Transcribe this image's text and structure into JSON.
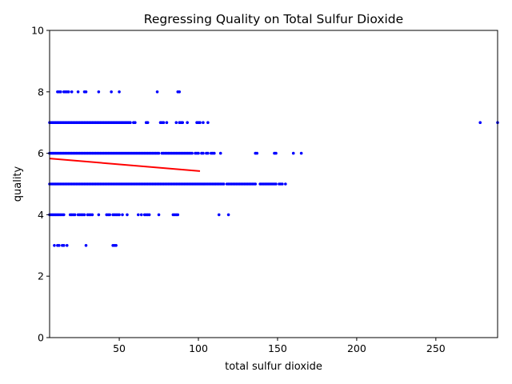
{
  "chart_data": {
    "type": "scatter",
    "title": "Regressing Quality on Total Sulfur Dioxide",
    "xlabel": "total sulfur dioxide",
    "ylabel": "quality",
    "xlim": [
      6,
      289
    ],
    "ylim": [
      0,
      10
    ],
    "xticks": [
      50,
      100,
      150,
      200,
      250
    ],
    "yticks": [
      0,
      2,
      4,
      6,
      8,
      10
    ],
    "grid": false,
    "legend": "none",
    "point_color": "#0000ff",
    "line_color": "#ff0000",
    "series": [
      {
        "kind": "scatter",
        "points": [
          {
            "y": 3,
            "x": [
              9,
              11,
              12,
              14,
              15,
              17,
              29,
              46,
              47,
              48
            ]
          },
          {
            "y": 4,
            "x": [
              6,
              7,
              8,
              9,
              10,
              11,
              12,
              13,
              14,
              15,
              19,
              20,
              21,
              22,
              24,
              25,
              26,
              27,
              28,
              30,
              31,
              32,
              33,
              37,
              42,
              43,
              44,
              46,
              47,
              48,
              49,
              50,
              52,
              55,
              62,
              64,
              66,
              67,
              68,
              69,
              75,
              84,
              85,
              86,
              87,
              113,
              119
            ]
          },
          {
            "y": 5,
            "x": [
              6,
              7,
              8,
              9,
              10,
              11,
              12,
              13,
              14,
              15,
              16,
              17,
              18,
              19,
              20,
              21,
              22,
              23,
              24,
              25,
              26,
              27,
              28,
              29,
              30,
              31,
              32,
              33,
              34,
              35,
              36,
              37,
              38,
              39,
              40,
              41,
              42,
              43,
              44,
              45,
              46,
              47,
              48,
              49,
              50,
              51,
              52,
              53,
              54,
              55,
              56,
              57,
              58,
              59,
              60,
              61,
              62,
              63,
              64,
              65,
              66,
              67,
              68,
              69,
              70,
              71,
              72,
              73,
              74,
              75,
              76,
              77,
              78,
              79,
              80,
              81,
              82,
              83,
              84,
              85,
              86,
              87,
              88,
              89,
              90,
              91,
              92,
              93,
              94,
              95,
              96,
              97,
              98,
              99,
              100,
              101,
              102,
              103,
              104,
              105,
              106,
              107,
              108,
              109,
              110,
              111,
              112,
              113,
              114,
              115,
              116,
              118,
              119,
              120,
              121,
              122,
              123,
              124,
              125,
              126,
              127,
              128,
              129,
              130,
              131,
              132,
              133,
              134,
              135,
              136,
              139,
              140,
              141,
              142,
              143,
              144,
              145,
              146,
              147,
              148,
              149,
              151,
              152,
              153,
              155
            ]
          },
          {
            "y": 6,
            "x": [
              6,
              7,
              8,
              9,
              10,
              11,
              12,
              13,
              14,
              15,
              16,
              17,
              18,
              19,
              20,
              21,
              22,
              23,
              24,
              25,
              26,
              27,
              28,
              29,
              30,
              31,
              32,
              33,
              34,
              35,
              36,
              37,
              38,
              39,
              40,
              41,
              42,
              43,
              44,
              45,
              46,
              47,
              48,
              49,
              50,
              51,
              52,
              53,
              54,
              55,
              56,
              57,
              58,
              59,
              60,
              61,
              62,
              63,
              64,
              65,
              66,
              67,
              68,
              69,
              70,
              71,
              72,
              73,
              74,
              75,
              77,
              78,
              79,
              80,
              81,
              82,
              83,
              84,
              85,
              86,
              87,
              88,
              89,
              90,
              91,
              92,
              93,
              94,
              95,
              96,
              98,
              99,
              100,
              102,
              103,
              105,
              106,
              108,
              109,
              110,
              114,
              136,
              137,
              148,
              149,
              160,
              165
            ]
          },
          {
            "y": 7,
            "x": [
              6,
              7,
              8,
              9,
              10,
              11,
              12,
              13,
              14,
              15,
              16,
              17,
              18,
              19,
              20,
              21,
              22,
              23,
              24,
              25,
              26,
              27,
              28,
              29,
              30,
              31,
              32,
              33,
              34,
              35,
              36,
              37,
              38,
              39,
              40,
              41,
              42,
              43,
              44,
              45,
              46,
              47,
              48,
              49,
              50,
              51,
              52,
              53,
              54,
              55,
              56,
              57,
              59,
              60,
              67,
              68,
              76,
              77,
              78,
              80,
              86,
              88,
              89,
              90,
              93,
              99,
              100,
              101,
              103,
              106,
              278,
              289
            ]
          },
          {
            "y": 8,
            "x": [
              11,
              12,
              13,
              15,
              16,
              17,
              18,
              20,
              24,
              28,
              29,
              37,
              45,
              50,
              74,
              87,
              88
            ]
          }
        ]
      },
      {
        "kind": "line",
        "x": [
          6,
          101
        ],
        "y": [
          5.83,
          5.42
        ]
      }
    ]
  }
}
